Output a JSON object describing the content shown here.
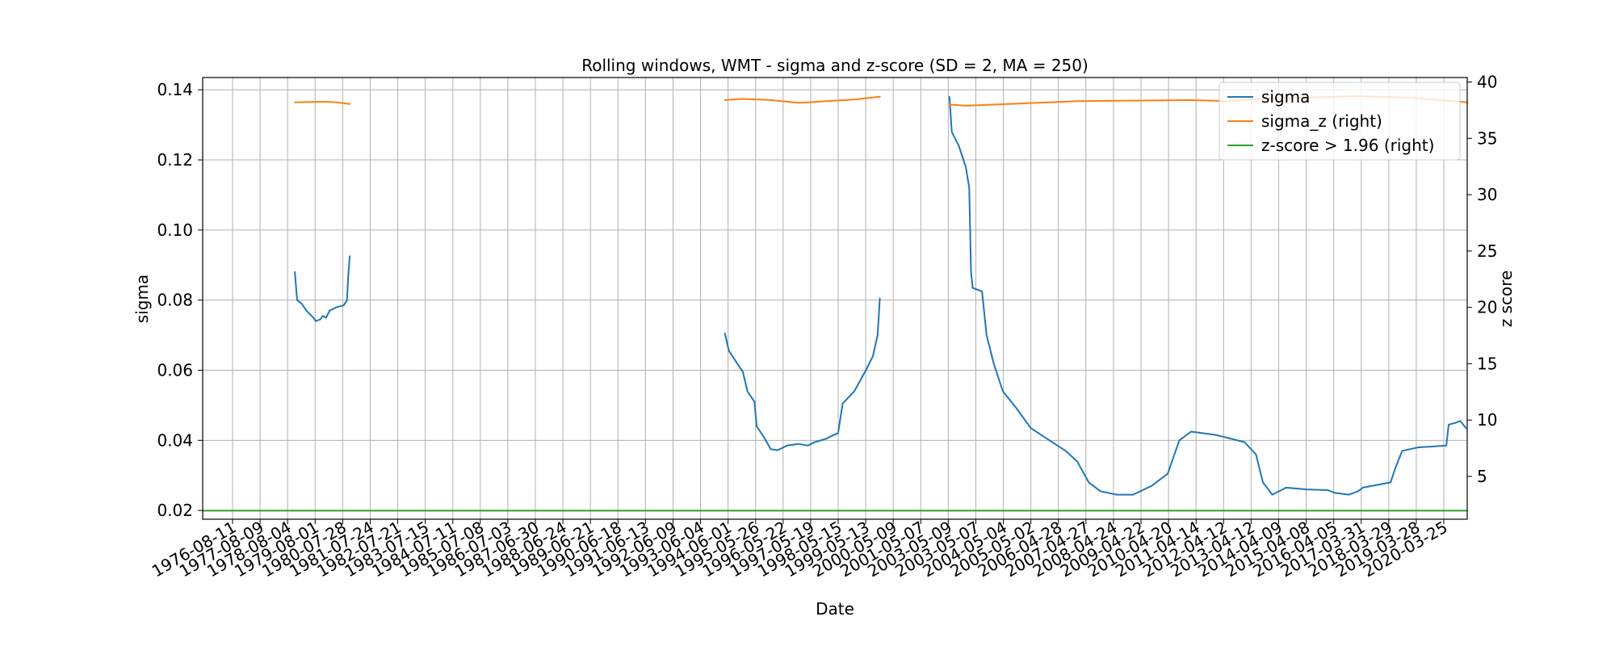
{
  "chart_data": {
    "type": "line",
    "title": "Rolling windows, WMT - sigma and z-score (SD = 2, MA = 250)",
    "xlabel": "Date",
    "ylabel": "sigma",
    "ylabel_right": "z score",
    "ylim": [
      0.0175,
      0.1435
    ],
    "ylim_right": [
      1.2,
      40.4
    ],
    "yticks": [
      0.02,
      0.04,
      0.06,
      0.08,
      0.1,
      0.12,
      0.14
    ],
    "ytick_labels": [
      "0.02",
      "0.04",
      "0.06",
      "0.08",
      "0.10",
      "0.12",
      "0.14"
    ],
    "yticks_right": [
      5,
      10,
      15,
      20,
      25,
      30,
      35,
      40
    ],
    "ytick_labels_right": [
      "5",
      "10",
      "15",
      "20",
      "25",
      "30",
      "35",
      "40"
    ],
    "xlim": [
      "1975-08-11",
      "2020-12-31"
    ],
    "xticks": [
      "1976-08-11",
      "1977-08-09",
      "1978-08-04",
      "1979-08-01",
      "1980-07-28",
      "1981-07-24",
      "1982-07-21",
      "1983-07-15",
      "1984-07-11",
      "1985-07-08",
      "1986-07-03",
      "1987-06-30",
      "1988-06-24",
      "1989-06-21",
      "1990-06-18",
      "1991-06-13",
      "1992-06-09",
      "1993-06-04",
      "1994-06-01",
      "1995-05-26",
      "1996-05-22",
      "1997-05-19",
      "1998-05-15",
      "1999-05-13",
      "2000-05-09",
      "2001-05-07",
      "2003-05-09",
      "2003-05-07",
      "2004-05-04",
      "2005-05-02",
      "2006-04-28",
      "2007-04-27",
      "2008-04-24",
      "2009-04-22",
      "2010-04-20",
      "2011-04-14",
      "2012-04-12",
      "2013-04-12",
      "2014-04-09",
      "2015-04-08",
      "2016-04-05",
      "2017-03-31",
      "2018-03-29",
      "2019-03-28",
      "2020-03-25"
    ],
    "grid": true,
    "legend_position": "top-right",
    "series": [
      {
        "name": "sigma",
        "axis": "left",
        "color": "#1f77b4",
        "segments": [
          [
            [
              "1978-12-01",
              0.088
            ],
            [
              "1979-01-01",
              0.08
            ],
            [
              "1979-03-01",
              0.079
            ],
            [
              "1979-05-01",
              0.077
            ],
            [
              "1979-08-01",
              0.075
            ],
            [
              "1979-09-01",
              0.074
            ],
            [
              "1979-11-01",
              0.0745
            ],
            [
              "1979-12-01",
              0.0755
            ],
            [
              "1980-01-15",
              0.075
            ],
            [
              "1980-03-01",
              0.077
            ],
            [
              "1980-06-01",
              0.078
            ],
            [
              "1980-09-01",
              0.0785
            ],
            [
              "1980-10-15",
              0.08
            ],
            [
              "1980-11-01",
              0.087
            ],
            [
              "1980-11-20",
              0.0925
            ]
          ],
          [
            [
              "1994-05-10",
              0.0705
            ],
            [
              "1994-07-01",
              0.0655
            ],
            [
              "1994-10-01",
              0.0625
            ],
            [
              "1995-01-01",
              0.0595
            ],
            [
              "1995-03-01",
              0.054
            ],
            [
              "1995-06-01",
              0.051
            ],
            [
              "1995-07-01",
              0.044
            ],
            [
              "1995-10-01",
              0.041
            ],
            [
              "1996-01-01",
              0.0375
            ],
            [
              "1996-04-01",
              0.0372
            ],
            [
              "1996-08-01",
              0.0385
            ],
            [
              "1997-01-01",
              0.039
            ],
            [
              "1997-05-01",
              0.0385
            ],
            [
              "1997-08-01",
              0.0395
            ],
            [
              "1998-01-01",
              0.0405
            ],
            [
              "1998-04-01",
              0.0415
            ],
            [
              "1998-06-01",
              0.042
            ],
            [
              "1998-08-01",
              0.0505
            ],
            [
              "1999-01-01",
              0.054
            ],
            [
              "1999-06-01",
              0.06
            ],
            [
              "1999-09-01",
              0.064
            ],
            [
              "1999-11-01",
              0.07
            ],
            [
              "1999-12-01",
              0.0805
            ]
          ],
          [
            [
              "2002-06-01",
              0.138
            ],
            [
              "2002-07-01",
              0.128
            ],
            [
              "2002-10-01",
              0.124
            ],
            [
              "2003-01-01",
              0.118
            ],
            [
              "2003-02-15",
              0.112
            ],
            [
              "2003-03-10",
              0.088
            ],
            [
              "2003-04-01",
              0.0835
            ],
            [
              "2003-08-01",
              0.0825
            ],
            [
              "2003-10-01",
              0.07
            ],
            [
              "2004-01-01",
              0.062
            ],
            [
              "2004-05-01",
              0.054
            ],
            [
              "2004-11-01",
              0.049
            ],
            [
              "2005-05-01",
              0.0435
            ],
            [
              "2006-01-01",
              0.04
            ],
            [
              "2006-08-01",
              0.037
            ],
            [
              "2007-01-01",
              0.034
            ],
            [
              "2007-06-01",
              0.028
            ],
            [
              "2007-11-01",
              0.0255
            ],
            [
              "2008-06-01",
              0.0245
            ],
            [
              "2009-01-01",
              0.0245
            ],
            [
              "2009-09-01",
              0.027
            ],
            [
              "2010-04-01",
              0.0305
            ],
            [
              "2010-09-01",
              0.04
            ],
            [
              "2011-02-01",
              0.0425
            ],
            [
              "2012-01-01",
              0.0415
            ],
            [
              "2013-01-01",
              0.0395
            ],
            [
              "2013-06-01",
              0.036
            ],
            [
              "2013-09-01",
              0.028
            ],
            [
              "2014-01-01",
              0.0245
            ],
            [
              "2014-07-01",
              0.0265
            ],
            [
              "2015-04-01",
              0.026
            ],
            [
              "2016-01-01",
              0.0258
            ],
            [
              "2016-04-01",
              0.025
            ],
            [
              "2016-10-01",
              0.0245
            ],
            [
              "2017-02-01",
              0.0255
            ],
            [
              "2017-04-01",
              0.0265
            ],
            [
              "2018-04-01",
              0.028
            ],
            [
              "2018-06-01",
              0.032
            ],
            [
              "2018-09-01",
              0.037
            ],
            [
              "2019-04-01",
              0.038
            ],
            [
              "2020-04-01",
              0.0385
            ],
            [
              "2020-05-01",
              0.0445
            ],
            [
              "2020-08-01",
              0.045
            ],
            [
              "2020-10-01",
              0.0455
            ],
            [
              "2020-12-15",
              0.0435
            ]
          ]
        ]
      },
      {
        "name": "sigma_z (right)",
        "axis": "right",
        "color": "#ff7f0e",
        "segments": [
          [
            [
              "1978-12-01",
              38.2
            ],
            [
              "1980-01-01",
              38.25
            ],
            [
              "1980-06-01",
              38.2
            ],
            [
              "1980-11-20",
              38.05
            ]
          ],
          [
            [
              "1994-05-10",
              38.4
            ],
            [
              "1995-01-01",
              38.5
            ],
            [
              "1996-01-01",
              38.4
            ],
            [
              "1997-01-01",
              38.15
            ],
            [
              "1998-01-01",
              38.3
            ],
            [
              "1999-01-01",
              38.45
            ],
            [
              "1999-12-01",
              38.7
            ]
          ],
          [
            [
              "2002-06-01",
              38.0
            ],
            [
              "2003-01-01",
              37.9
            ],
            [
              "2004-01-01",
              38.0
            ],
            [
              "2005-01-01",
              38.1
            ],
            [
              "2007-01-01",
              38.3
            ],
            [
              "2009-01-01",
              38.35
            ],
            [
              "2011-01-01",
              38.4
            ],
            [
              "2012-06-01",
              38.3
            ],
            [
              "2013-06-01",
              38.5
            ],
            [
              "2015-01-01",
              38.6
            ],
            [
              "2017-01-01",
              38.75
            ],
            [
              "2019-01-01",
              38.6
            ],
            [
              "2020-12-31",
              38.2
            ]
          ]
        ]
      },
      {
        "name": "z-score > 1.96 (right)",
        "axis": "right",
        "color": "#2ca02c",
        "segments": [
          [
            [
              "1975-08-11",
              1.96
            ],
            [
              "2020-12-31",
              1.96
            ]
          ]
        ]
      }
    ]
  }
}
